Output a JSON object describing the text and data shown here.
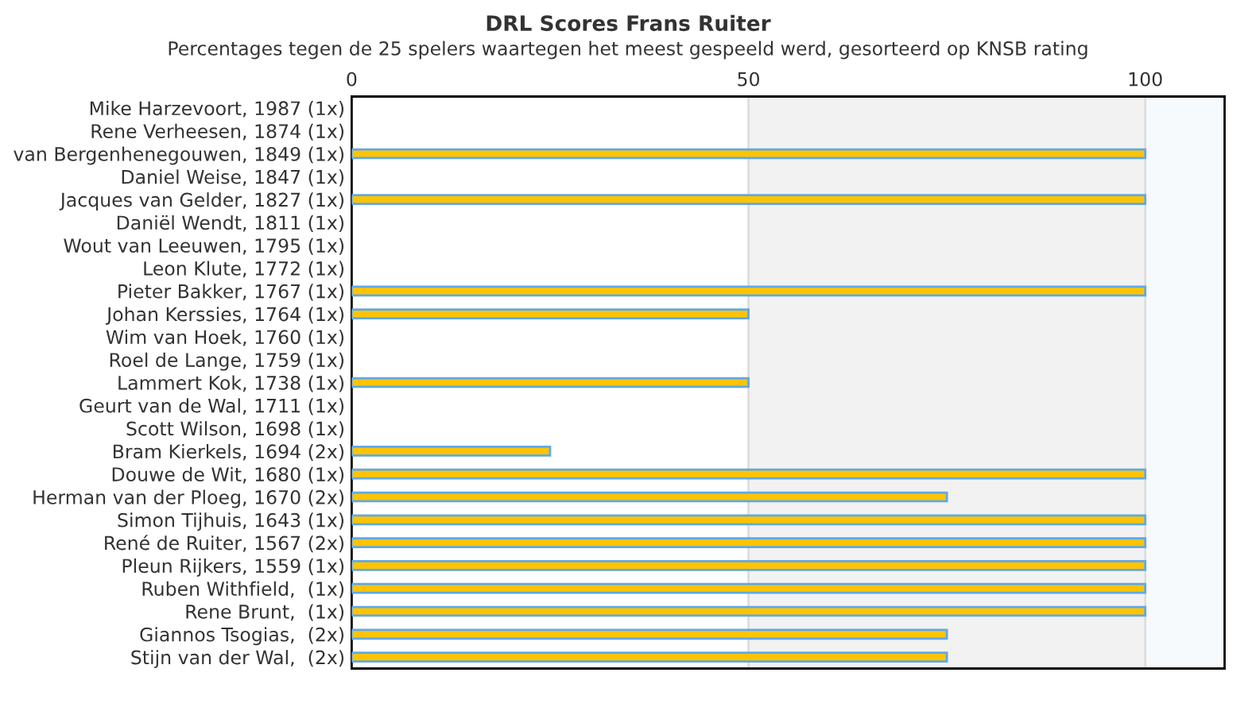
{
  "chart_data": {
    "type": "bar",
    "orientation": "horizontal",
    "title": "DRL Scores Frans Ruiter",
    "subtitle": "Percentages tegen de 25 spelers waartegen het meest gespeeld werd, gesorteerd op KNSB rating",
    "categories": [
      "Mike Harzevoort, 1987 (1x)",
      "Rene Verheesen, 1874 (1x)",
      "van Bergenhenegouwen, 1849 (1x)",
      "Daniel Weise, 1847 (1x)",
      "Jacques van Gelder, 1827 (1x)",
      "Daniël Wendt, 1811 (1x)",
      "Wout van Leeuwen, 1795 (1x)",
      "Leon Klute, 1772 (1x)",
      "Pieter Bakker, 1767 (1x)",
      "Johan Kerssies, 1764 (1x)",
      "Wim van Hoek, 1760 (1x)",
      "Roel de Lange, 1759 (1x)",
      "Lammert Kok, 1738 (1x)",
      "Geurt van de Wal, 1711 (1x)",
      "Scott Wilson, 1698 (1x)",
      "Bram Kierkels, 1694 (2x)",
      "Douwe de Wit, 1680 (1x)",
      "Herman van der Ploeg, 1670 (2x)",
      "Simon Tijhuis, 1643 (1x)",
      "René de Ruiter, 1567 (2x)",
      "Pleun Rijkers, 1559 (1x)",
      "Ruben Withfield,  (1x)",
      "Rene Brunt,  (1x)",
      "Giannos Tsogias,  (2x)",
      "Stijn van der Wal,  (2x)"
    ],
    "values": [
      0,
      0,
      100,
      0,
      100,
      0,
      0,
      0,
      100,
      50,
      0,
      0,
      50,
      0,
      0,
      25,
      100,
      75,
      100,
      100,
      100,
      100,
      100,
      75,
      75
    ],
    "color": "#ffc400",
    "xlim": [
      0,
      110
    ],
    "xticks": [
      0,
      50,
      100
    ],
    "grid": "x",
    "bands": [
      {
        "axis": "x",
        "from": 50,
        "to": 100,
        "color": "#f2f2f2"
      },
      {
        "axis": "x",
        "from": 100,
        "to": 110,
        "color": "#f7fafc"
      }
    ]
  }
}
